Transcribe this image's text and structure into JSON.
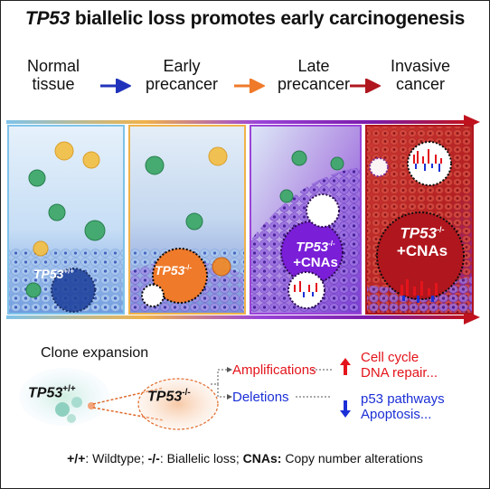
{
  "title": {
    "gene": "TP53",
    "rest": " biallelic loss promotes early carcinogenesis"
  },
  "stages": [
    "Normal\ntissue",
    "Early\nprecancer",
    "Late\nprecancer",
    "Invasive\ncancer"
  ],
  "panel_labels": {
    "wt_gene": "TP53",
    "wt_sup": "+/+",
    "early_gene": "TP53",
    "early_sup": "-/-",
    "late_gene": "TP53",
    "late_sup": "-/-",
    "late_cna": "+CNAs",
    "inv_gene": "TP53",
    "inv_sup": "-/-",
    "inv_cna": "+CNAs"
  },
  "clone": {
    "title": "Clone expansion",
    "wt_gene": "TP53",
    "wt_sup": "+/+",
    "mut_gene": "TP53",
    "mut_sup": "-/-"
  },
  "outcomes": {
    "amp_label": "Amplifications",
    "amp_effects": "Cell cycle\nDNA repair...",
    "del_label": "Deletions",
    "del_effects": "p53 pathways\nApoptosis..."
  },
  "footer": {
    "k1": "+/+",
    "t1": ": Wildtype; ",
    "k2": "-/-",
    "t2": ": Biallelic loss; ",
    "k3": "CNAs:",
    "t3": " Copy number alterations"
  },
  "colors": {
    "normal": "#5aa9df",
    "early": "#e8963a",
    "late": "#8a38c8",
    "invasive": "#b0161e",
    "amp": "#e3141b",
    "del": "#1b2fd6"
  }
}
